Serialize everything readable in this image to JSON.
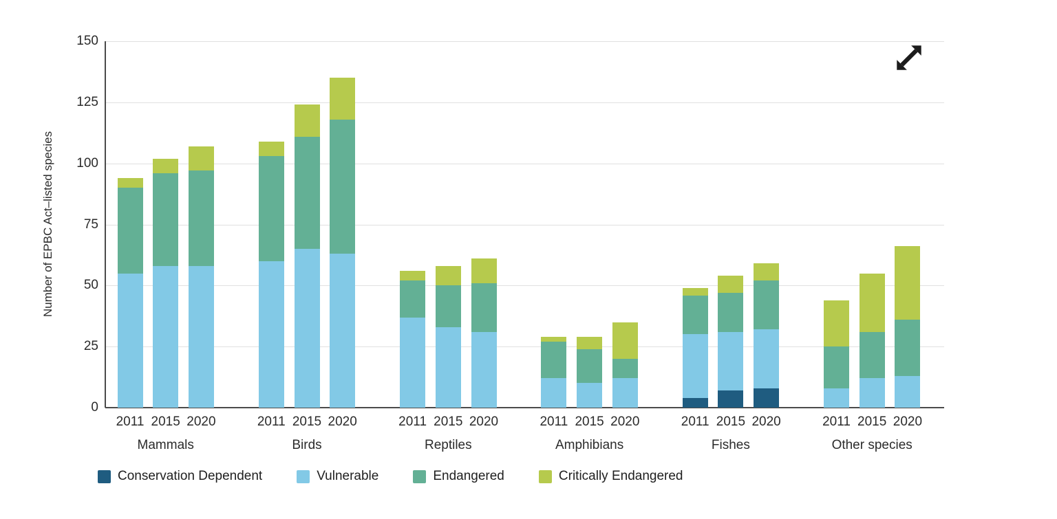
{
  "page": {
    "background": "#ffffff"
  },
  "expand": {
    "icon": "diagonal-expand-arrow",
    "color": "#1c1c1c"
  },
  "axis": {
    "line_color": "#4a4a4a",
    "grid_color": "#e0e0e0",
    "text_color": "#2b2b2b"
  },
  "chart_data": {
    "type": "bar",
    "stacked": true,
    "title": "",
    "xlabel": "",
    "ylabel": "Number of EPBC Act–listed species",
    "ylim": [
      0,
      150
    ],
    "yticks": [
      0,
      25,
      50,
      75,
      100,
      125,
      150
    ],
    "grid": true,
    "legend_position": "bottom",
    "groups": [
      "Mammals",
      "Birds",
      "Reptiles",
      "Amphibians",
      "Fishes",
      "Other species"
    ],
    "years": [
      "2011",
      "2015",
      "2020"
    ],
    "series": [
      {
        "name": "Conservation Dependent",
        "color": "#1f5c80",
        "values": [
          [
            0,
            0,
            0
          ],
          [
            0,
            0,
            0
          ],
          [
            0,
            0,
            0
          ],
          [
            0,
            0,
            0
          ],
          [
            4,
            7,
            8
          ],
          [
            0,
            0,
            0
          ]
        ]
      },
      {
        "name": "Vulnerable",
        "color": "#82c9e6",
        "values": [
          [
            55,
            58,
            58
          ],
          [
            60,
            65,
            63
          ],
          [
            37,
            33,
            31
          ],
          [
            12,
            10,
            12
          ],
          [
            26,
            24,
            24
          ],
          [
            8,
            12,
            13
          ]
        ]
      },
      {
        "name": "Endangered",
        "color": "#63b095",
        "values": [
          [
            35,
            38,
            39
          ],
          [
            43,
            46,
            55
          ],
          [
            15,
            17,
            20
          ],
          [
            15,
            14,
            8
          ],
          [
            16,
            16,
            20
          ],
          [
            17,
            19,
            23
          ]
        ]
      },
      {
        "name": "Critically Endangered",
        "color": "#b6ca4d",
        "values": [
          [
            4,
            6,
            10
          ],
          [
            6,
            13,
            17
          ],
          [
            4,
            8,
            10
          ],
          [
            2,
            5,
            15
          ],
          [
            3,
            7,
            7
          ],
          [
            19,
            24,
            30
          ]
        ]
      }
    ],
    "totals": [
      [
        94,
        102,
        107
      ],
      [
        109,
        124,
        135
      ],
      [
        56,
        58,
        61
      ],
      [
        29,
        29,
        35
      ],
      [
        49,
        54,
        59
      ],
      [
        44,
        55,
        66
      ]
    ]
  }
}
